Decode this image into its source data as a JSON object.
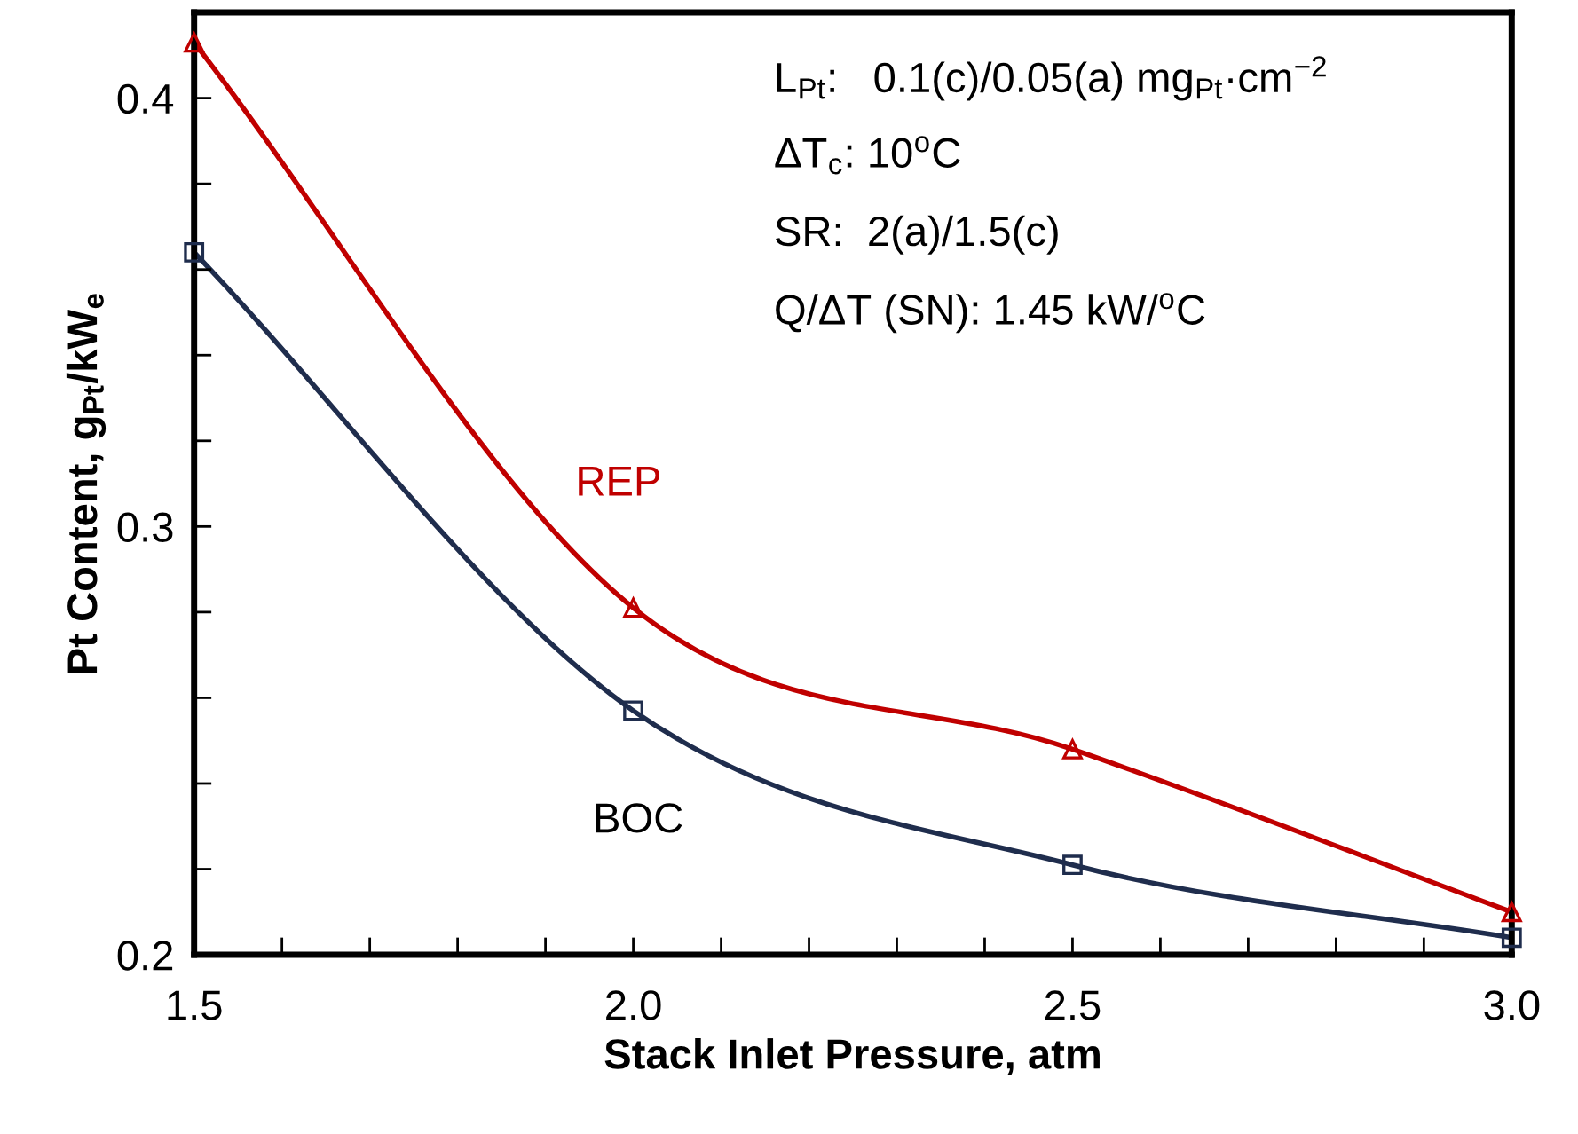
{
  "chart_data": {
    "type": "line",
    "xlabel": "Stack Inlet Pressure, atm",
    "ylabel": "Pt Content, g$_{Pt}$/kW$_{e}$",
    "x": [
      1.5,
      2.0,
      2.5,
      3.0
    ],
    "series": [
      {
        "name": "REP",
        "color": "#c00000",
        "marker": "triangle",
        "values": [
          0.413,
          0.281,
          0.248,
          0.21
        ]
      },
      {
        "name": "BOC",
        "color": "#1f2d4d",
        "marker": "square",
        "values": [
          0.364,
          0.257,
          0.221,
          0.204
        ]
      }
    ],
    "xlim": [
      1.5,
      3.0
    ],
    "xticks": [
      1.5,
      {
        "value": 1.6,
        "label": null
      },
      {
        "value": 1.7,
        "label": null
      },
      {
        "value": 1.8,
        "label": null
      },
      {
        "value": 1.9,
        "label": null
      },
      {
        "value": 2.0,
        "label": "2.0"
      },
      {
        "value": 2.1,
        "label": null
      },
      {
        "value": 2.2,
        "label": null
      },
      {
        "value": 2.3,
        "label": null
      },
      {
        "value": 2.4,
        "label": null
      },
      2.5,
      {
        "value": 2.6,
        "label": null
      },
      {
        "value": 2.7,
        "label": null
      },
      {
        "value": 2.8,
        "label": null
      },
      {
        "value": 2.9,
        "label": null
      },
      {
        "value": 3.0,
        "label": "3.0"
      }
    ],
    "ylim": [
      0.2,
      0.42
    ],
    "yticks": [
      0.2,
      {
        "value": 0.22,
        "label": null
      },
      {
        "value": 0.24,
        "label": null
      },
      {
        "value": 0.26,
        "label": null
      },
      {
        "value": 0.28,
        "label": null
      },
      0.3,
      {
        "value": 0.32,
        "label": null
      },
      {
        "value": 0.34,
        "label": null
      },
      {
        "value": 0.36,
        "label": null
      },
      {
        "value": 0.38,
        "label": null
      },
      0.4
    ],
    "annotations": [
      "L$_{Pt}$:   0.1(c)/0.05(a) mg$_{Pt}$·cm$^{−2}$",
      "ΔT$_{c}$: 10$^{o}$C",
      "SR:  2(a)/1.5(c)",
      "Q/ΔT (SN): 1.45 kW/$^{o}$C"
    ],
    "grid": false,
    "legend": false,
    "line_style": "solid"
  }
}
